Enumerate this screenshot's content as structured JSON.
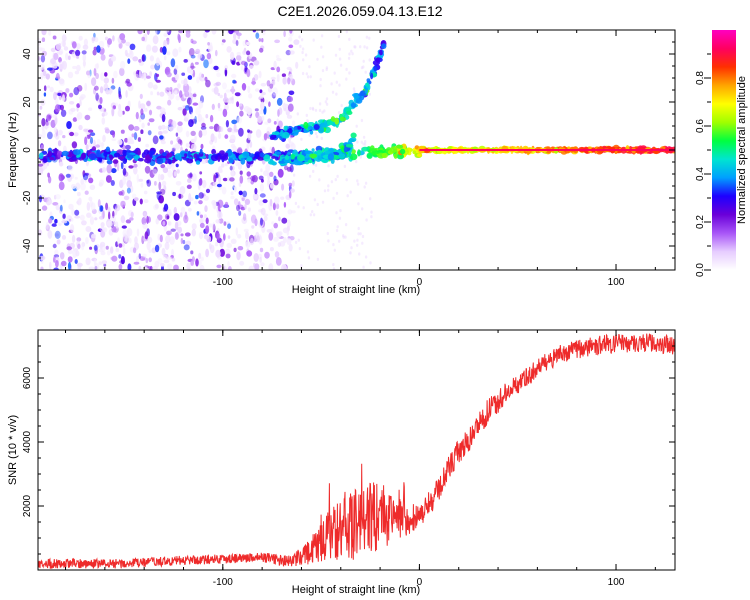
{
  "title": "C2E1.2026.059.04.13.E12",
  "chart_data": [
    {
      "type": "heatmap",
      "title": "C2E1.2026.059.04.13.E12",
      "xlabel": "Height of straight line (km)",
      "ylabel": "Frequency (Hz)",
      "xlim": [
        -194,
        130
      ],
      "ylim": [
        -50,
        50
      ],
      "x_ticks": [
        -100,
        0,
        100
      ],
      "x_tick_labels": [
        "-100",
        "0",
        "100"
      ],
      "y_ticks": [
        -40,
        -20,
        0,
        20,
        40
      ],
      "y_tick_labels": [
        "-40",
        "-20",
        "0",
        "20",
        "40"
      ],
      "colorbar": {
        "label": "Normalized spectral amplitude",
        "range": [
          0,
          1
        ],
        "ticks": [
          0.0,
          0.2,
          0.4,
          0.6,
          0.8
        ],
        "tick_labels": [
          "0.0",
          "0.2",
          "0.4",
          "0.6",
          "0.8"
        ],
        "colormap": [
          "#ffffff",
          "#e6ccff",
          "#a855f7",
          "#6a00d9",
          "#1d00ff",
          "#00a0ff",
          "#00e5d0",
          "#00ff40",
          "#a0ff00",
          "#ffff00",
          "#ffa500",
          "#ff3000",
          "#ff0060",
          "#ff00c0"
        ]
      },
      "features": [
        {
          "name": "carrier",
          "x": [
            -194,
            -80,
            -30,
            0,
            130
          ],
          "freq_hz": [
            -2,
            -3,
            -1,
            0,
            0
          ],
          "amplitude": [
            0.3,
            0.35,
            0.5,
            0.7,
            0.95
          ]
        },
        {
          "name": "upper-branch",
          "x": [
            -75,
            -40,
            -25,
            -18
          ],
          "freq_hz": [
            6,
            12,
            28,
            45
          ],
          "amplitude": [
            0.35,
            0.45,
            0.4,
            0.3
          ]
        },
        {
          "name": "lower-branch",
          "x": [
            -70,
            -50,
            -40,
            -33
          ],
          "freq_hz": [
            -4,
            -3,
            -2,
            5
          ],
          "amplitude": [
            0.4,
            0.45,
            0.45,
            0.4
          ]
        }
      ],
      "noise_region_x": [
        -194,
        -64
      ]
    },
    {
      "type": "line",
      "xlabel": "Height of straight line (km)",
      "ylabel": "SNR (10 * v/v)",
      "xlim": [
        -194,
        130
      ],
      "ylim": [
        0,
        7500
      ],
      "x_ticks": [
        -100,
        0,
        100
      ],
      "x_tick_labels": [
        "-100",
        "0",
        "100"
      ],
      "y_ticks": [
        2000,
        4000,
        6000
      ],
      "y_tick_labels": [
        "2000",
        "4000",
        "6000"
      ],
      "series": [
        {
          "name": "SNR",
          "color": "#ee2b2b",
          "x": [
            -194,
            -150,
            -120,
            -80,
            -65,
            -55,
            -45,
            -35,
            -25,
            -15,
            -8,
            0,
            8,
            15,
            20,
            25,
            30,
            40,
            50,
            60,
            70,
            80,
            90,
            100,
            110,
            120,
            130
          ],
          "y": [
            200,
            200,
            300,
            400,
            250,
            600,
            1100,
            1400,
            1600,
            1700,
            1500,
            1700,
            2300,
            3200,
            3700,
            4000,
            4600,
            5300,
            5800,
            6300,
            6700,
            6900,
            7000,
            7100,
            7100,
            7100,
            7000
          ],
          "noise_amplitude": [
            150,
            150,
            150,
            150,
            200,
            400,
            800,
            1100,
            1200,
            900,
            600,
            400,
            400,
            400,
            400,
            400,
            400,
            400,
            300,
            300,
            300,
            300,
            300,
            300,
            300,
            300,
            300
          ]
        }
      ]
    }
  ]
}
